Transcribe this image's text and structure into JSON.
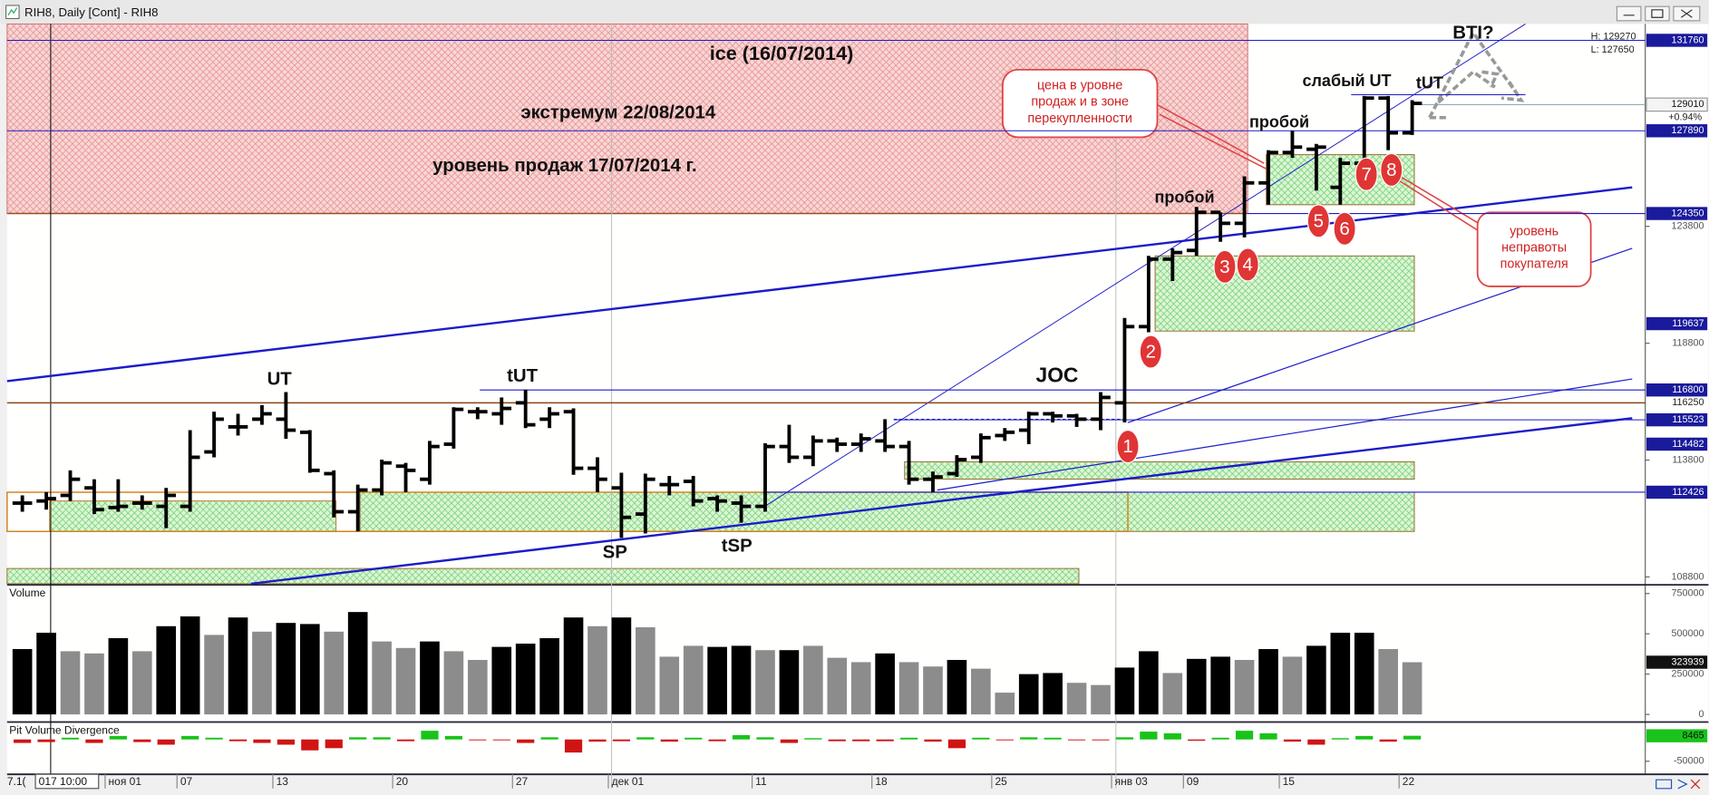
{
  "window": {
    "title": "RIH8, Daily [Cont] - RIH8"
  },
  "status": [
    "7.1(",
    "017  10:00"
  ],
  "chart_data": [
    {
      "type": "ohlc",
      "color": "#000000",
      "categories": [
        null,
        null,
        null,
        null,
        "ноя 01",
        null,
        null,
        "07",
        null,
        null,
        null,
        "13",
        null,
        null,
        null,
        null,
        "20",
        null,
        null,
        null,
        null,
        "27",
        null,
        null,
        null,
        "дек 01",
        null,
        null,
        null,
        null,
        null,
        "11",
        null,
        null,
        null,
        null,
        "18",
        null,
        null,
        null,
        null,
        "25",
        null,
        null,
        null,
        null,
        "янв 03",
        null,
        null,
        "09",
        null,
        null,
        null,
        "15",
        null,
        null,
        null,
        null,
        "22"
      ],
      "open": [
        111960,
        112050,
        112290,
        112610,
        111770,
        111960,
        111820,
        111820,
        114150,
        115220,
        115550,
        115550,
        114990,
        113220,
        111590,
        112520,
        113540,
        112980,
        114480,
        115870,
        115780,
        116250,
        115550,
        115870,
        113450,
        112610,
        111490,
        112750,
        112890,
        112150,
        111960,
        111820,
        114380,
        113920,
        114620,
        114480,
        114620,
        114380,
        112980,
        113220,
        113920,
        114850,
        115080,
        115780,
        115690,
        115550,
        116250,
        119510,
        122400,
        122770,
        124400,
        123930,
        125660,
        126960,
        127100,
        125470,
        126500,
        129290,
        127800
      ],
      "high": [
        112290,
        112430,
        113360,
        112980,
        112980,
        112290,
        112610,
        115080,
        115870,
        115780,
        116150,
        116710,
        115080,
        113360,
        112750,
        113820,
        113680,
        114620,
        116060,
        116060,
        116480,
        116810,
        116060,
        116010,
        113920,
        113260,
        113220,
        113120,
        113120,
        112290,
        112290,
        114520,
        115310,
        114850,
        114760,
        114940,
        115550,
        114620,
        113310,
        114010,
        114940,
        115170,
        115870,
        115870,
        115780,
        116710,
        119880,
        122540,
        122860,
        124630,
        124400,
        125940,
        127060,
        127890,
        127330,
        126730,
        129380,
        129380,
        129200
      ],
      "low": [
        111590,
        111680,
        112050,
        111490,
        111590,
        111680,
        110890,
        111590,
        113920,
        114850,
        115310,
        114710,
        113260,
        111350,
        110750,
        112290,
        112430,
        112750,
        114290,
        115550,
        115310,
        115170,
        115170,
        113170,
        112430,
        110470,
        110660,
        112290,
        111820,
        111590,
        111120,
        111590,
        113680,
        113540,
        114150,
        114150,
        114150,
        112750,
        112430,
        113080,
        113680,
        114620,
        114480,
        115410,
        115220,
        115080,
        115410,
        119270,
        121460,
        122540,
        123140,
        123330,
        124730,
        126730,
        125330,
        124730,
        126360,
        127060,
        127710
      ],
      "close": [
        111960,
        112150,
        112980,
        111680,
        111820,
        111960,
        112290,
        113920,
        115550,
        115220,
        115780,
        115080,
        113360,
        111590,
        112520,
        113680,
        113360,
        114380,
        115970,
        115870,
        116010,
        115310,
        115780,
        113450,
        112980,
        111350,
        112980,
        112750,
        112050,
        112050,
        111820,
        114380,
        113920,
        114620,
        114480,
        114710,
        114380,
        112980,
        113080,
        113820,
        114760,
        114990,
        115780,
        115690,
        115550,
        116480,
        119510,
        122400,
        122680,
        124400,
        123930,
        125660,
        126960,
        127190,
        127190,
        126500,
        129290,
        127800,
        129060
      ],
      "ylim": [
        108510,
        132460
      ],
      "yticks": [
        108800,
        113800,
        118800,
        123800
      ],
      "levels": [
        131760,
        127890,
        124350,
        119637,
        116800,
        116250,
        115523,
        114482,
        112426
      ],
      "last_price": 129010,
      "info": [
        "H: 129270",
        "L: 127650"
      ],
      "change": "+0.94%",
      "annotations": [
        "ice (16/07/2014)",
        "экстремум 22/08/2014",
        "уровень продаж 17/07/2014 г.",
        "UT",
        "tUT",
        "SP",
        "tSP",
        "JOC",
        "пробой",
        "пробой",
        "слабый UT",
        "tUT",
        "BTI?"
      ],
      "markers": [
        "1",
        "2",
        "3",
        "4",
        "5",
        "6",
        "7",
        "8"
      ],
      "callouts": [
        [
          "цена в уровне",
          "продаж и в зоне",
          "перекупленности"
        ],
        [
          "уровень",
          "неправоты",
          "покупателя"
        ]
      ]
    },
    {
      "type": "bar",
      "title": "Volume",
      "values": [
        405400,
        506800,
        391900,
        378400,
        473000,
        391900,
        547300,
        608100,
        493300,
        601400,
        513500,
        567600,
        560800,
        513500,
        635200,
        452700,
        412200,
        452700,
        391900,
        337900,
        418900,
        439200,
        473000,
        601400,
        547300,
        601400,
        540600,
        358100,
        425700,
        418900,
        425700,
        398700,
        398700,
        425700,
        351400,
        324300,
        378400,
        324300,
        297300,
        337900,
        283800,
        135100,
        250000,
        256800,
        196000,
        182400,
        290600,
        391900,
        256800,
        344600,
        358100,
        337900,
        405400,
        358100,
        425700,
        506800,
        506800,
        405400,
        323939
      ],
      "colors": [
        "#000000",
        "#000000",
        "#8c8c8c",
        "#8c8c8c",
        "#000000",
        "#8c8c8c",
        "#000000",
        "#000000",
        "#8c8c8c",
        "#000000",
        "#8c8c8c",
        "#000000",
        "#000000",
        "#8c8c8c",
        "#000000",
        "#8c8c8c",
        "#8c8c8c",
        "#000000",
        "#8c8c8c",
        "#8c8c8c",
        "#000000",
        "#000000",
        "#000000",
        "#000000",
        "#8c8c8c",
        "#000000",
        "#8c8c8c",
        "#8c8c8c",
        "#8c8c8c",
        "#000000",
        "#000000",
        "#8c8c8c",
        "#000000",
        "#8c8c8c",
        "#8c8c8c",
        "#8c8c8c",
        "#000000",
        "#8c8c8c",
        "#8c8c8c",
        "#000000",
        "#8c8c8c",
        "#8c8c8c",
        "#000000",
        "#000000",
        "#8c8c8c",
        "#8c8c8c",
        "#000000",
        "#000000",
        "#8c8c8c",
        "#000000",
        "#000000",
        "#8c8c8c",
        "#000000",
        "#8c8c8c",
        "#000000",
        "#000000",
        "#000000",
        "#8c8c8c",
        "#8c8c8c"
      ],
      "ylim": [
        -40500,
        797300
      ],
      "yticks": [
        0,
        250000,
        500000,
        750000
      ]
    },
    {
      "type": "bar",
      "title": "Pit Volume Divergence",
      "values": [
        -8000,
        -6000,
        4000,
        -8000,
        8000,
        -6000,
        -12000,
        8000,
        4000,
        -4000,
        -8000,
        -12000,
        -25000,
        -20000,
        5000,
        5000,
        -4000,
        20000,
        8000,
        -2000,
        -2000,
        -8000,
        5000,
        -30000,
        -5000,
        -4000,
        5000,
        -5000,
        4000,
        -4000,
        10000,
        5000,
        -8000,
        3000,
        -4000,
        -4000,
        -4000,
        4000,
        -5000,
        -20000,
        4000,
        -2000,
        5000,
        4000,
        -2000,
        -2000,
        5000,
        18000,
        14000,
        -3000,
        4000,
        20000,
        14000,
        -5000,
        -12000,
        3000,
        8000,
        -5000,
        8465
      ],
      "pos_color": "#19c319",
      "neg_color": "#d01414",
      "ylim": [
        -77500,
        37500
      ],
      "yticks": [
        -50000
      ]
    }
  ]
}
